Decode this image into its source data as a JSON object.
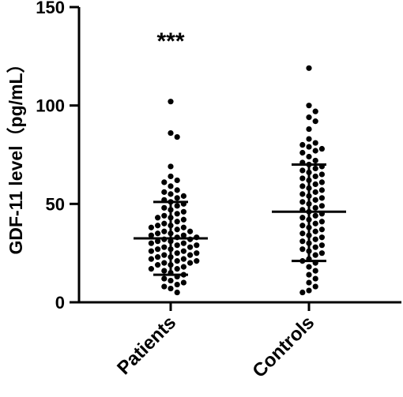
{
  "chart_data": {
    "type": "scatter",
    "subtype": "dot-plot-with-mean-sd",
    "title": "",
    "xlabel": "",
    "ylabel": "GDF-11 level（pg/mL）",
    "ylim": [
      0,
      150
    ],
    "yticks": [
      0,
      50,
      100,
      150
    ],
    "grid": false,
    "legend": "none",
    "annotation": "***",
    "categories": [
      "Patients",
      "Controls"
    ],
    "series": [
      {
        "category": "Patients",
        "mean": 32.5,
        "sd_low": 14,
        "sd_high": 51,
        "points": [
          102,
          86,
          84,
          69,
          64,
          62,
          61,
          59,
          57,
          56,
          55,
          54,
          53,
          52,
          51,
          50,
          49,
          48,
          47,
          46,
          45,
          44,
          43,
          43,
          42,
          41,
          40,
          39,
          39,
          38,
          38,
          37,
          36,
          36,
          35,
          35,
          34,
          34,
          33,
          33,
          32,
          32,
          31,
          31,
          30,
          30,
          29,
          29,
          28,
          28,
          27,
          27,
          26,
          26,
          25,
          25,
          24,
          24,
          23,
          23,
          22,
          22,
          21,
          21,
          20,
          20,
          19,
          19,
          18,
          17,
          17,
          16,
          15,
          14,
          13,
          12,
          11,
          10,
          9,
          8,
          7,
          5
        ]
      },
      {
        "category": "Controls",
        "mean": 46,
        "sd_low": 21,
        "sd_high": 70,
        "points": [
          119,
          100,
          97,
          94,
          92,
          88,
          83,
          81,
          80,
          79,
          78,
          77,
          76,
          74,
          72,
          71,
          70,
          69,
          68,
          67,
          66,
          65,
          64,
          63,
          62,
          61,
          60,
          59,
          58,
          57,
          56,
          55,
          54,
          53,
          52,
          51,
          50,
          49,
          48,
          47,
          46,
          45,
          44,
          43,
          42,
          41,
          40,
          39,
          38,
          37,
          36,
          35,
          34,
          33,
          32,
          31,
          30,
          29,
          28,
          27,
          26,
          25,
          24,
          22,
          21,
          20,
          18,
          16,
          14,
          12,
          10,
          8,
          6,
          5
        ]
      }
    ]
  }
}
